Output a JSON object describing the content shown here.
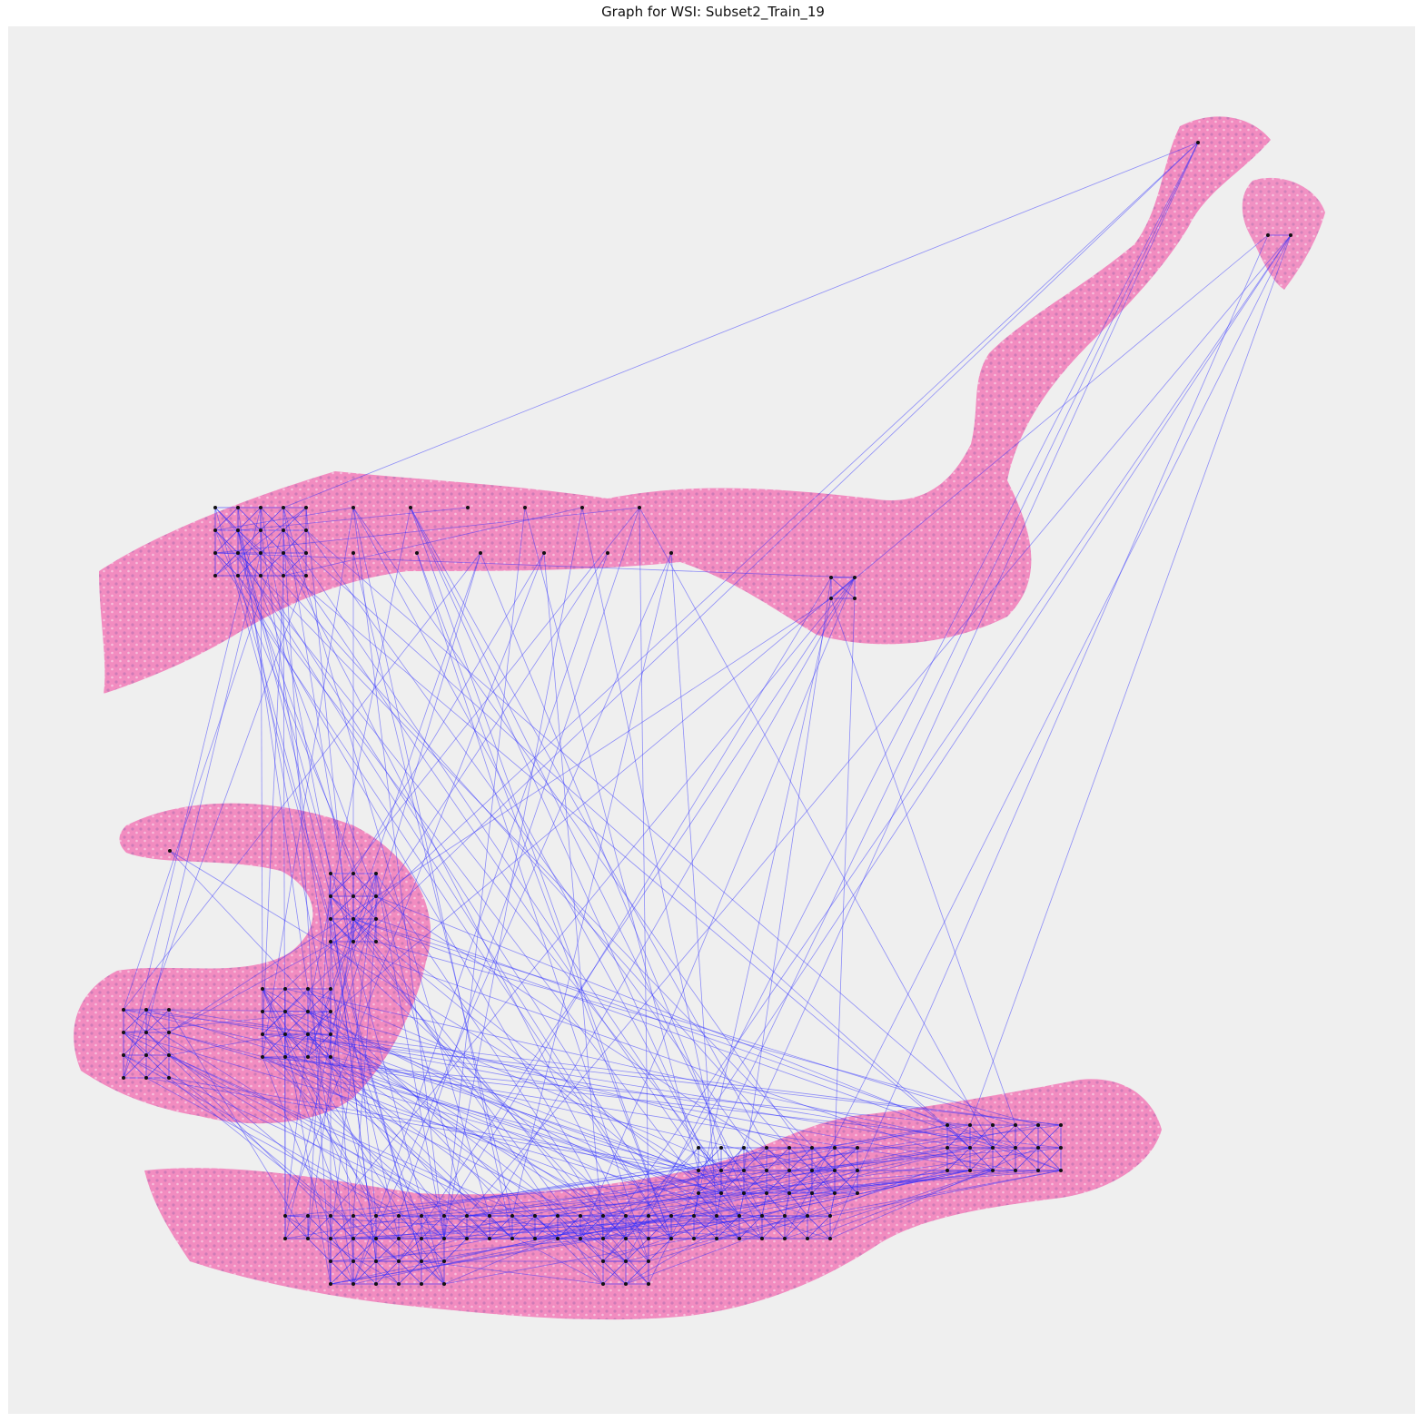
{
  "figure": {
    "title": "Graph for WSI: Subset2_Train_19"
  },
  "colors": {
    "background": "#efefef",
    "tissue_pink": "#f27ab8",
    "tissue_purple": "#b06fb0",
    "edge": "#2b2bff",
    "node": "#111111"
  },
  "tissue_fragments": [
    "upper-strip",
    "right-hook",
    "right-small-piece",
    "middle-left-c-shape",
    "bottom-strip"
  ]
}
